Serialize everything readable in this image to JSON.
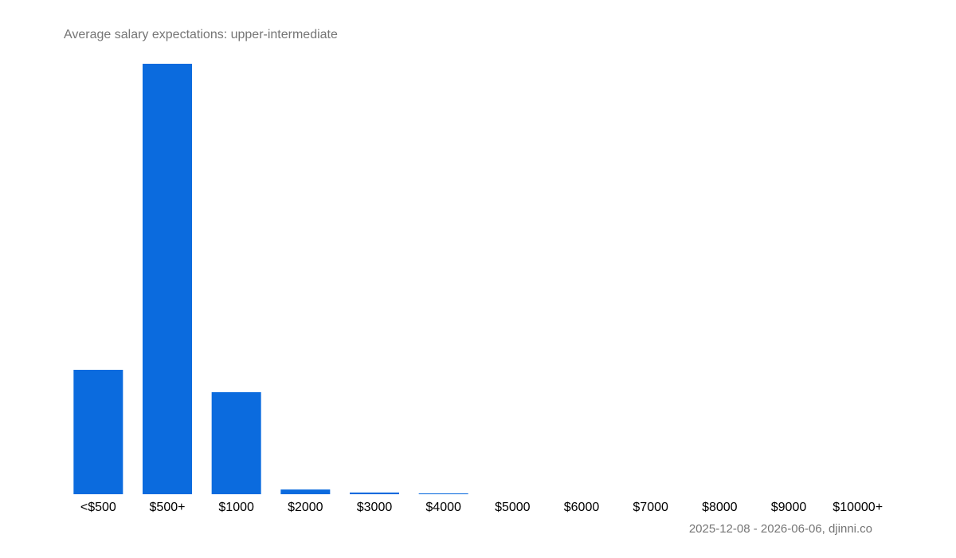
{
  "chart_data": {
    "type": "bar",
    "title": "Average salary expectations:  upper-intermediate",
    "footer": "2025-12-08 - 2026-06-06, djinni.co",
    "categories": [
      "<$500",
      "$500+",
      "$1000",
      "$2000",
      "$3000",
      "$4000",
      "$5000",
      "$6000",
      "$7000",
      "$8000",
      "$9000",
      "$10000+"
    ],
    "values": [
      28.9,
      100,
      23.7,
      1.1,
      0.4,
      0.2,
      0,
      0,
      0,
      0,
      0,
      0
    ],
    "color": "#0b6bde",
    "ylim": [
      0,
      100
    ]
  }
}
